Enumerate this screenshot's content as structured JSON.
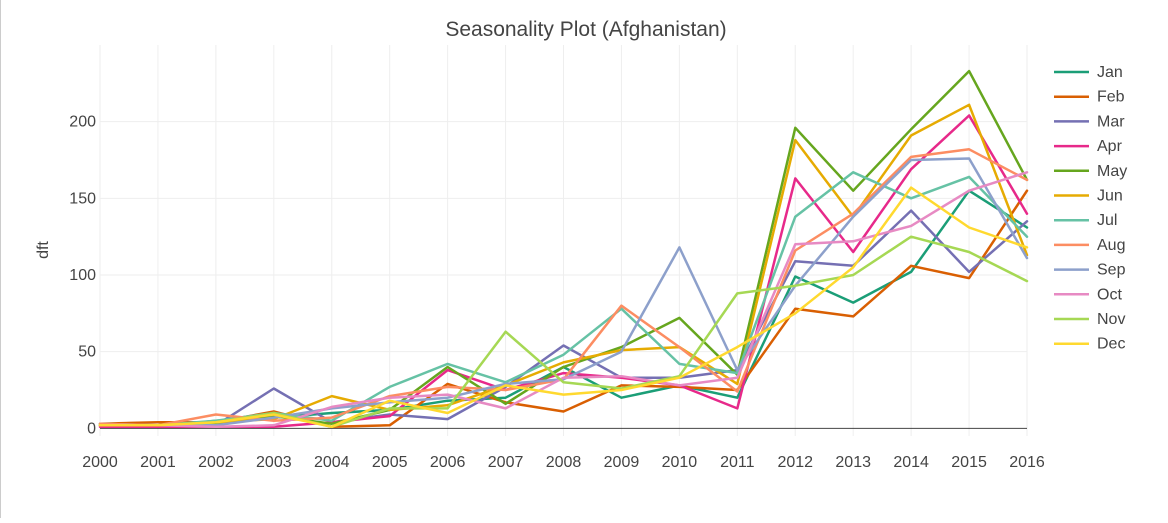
{
  "chart_data": {
    "type": "line",
    "title": "Seasonality Plot (Afghanistan)",
    "xlabel": "",
    "ylabel": "dft",
    "x": [
      2000,
      2001,
      2002,
      2003,
      2004,
      2005,
      2006,
      2007,
      2008,
      2009,
      2010,
      2011,
      2012,
      2013,
      2014,
      2015,
      2016
    ],
    "xlim": [
      2000,
      2016
    ],
    "ylim": [
      -5,
      250
    ],
    "yticks": [
      0,
      50,
      100,
      150,
      200
    ],
    "grid": true,
    "legend_position": "right",
    "series": [
      {
        "name": "Jan",
        "color": "#1b9e77",
        "values": [
          2,
          1,
          5,
          7,
          10,
          12,
          18,
          20,
          40,
          20,
          28,
          20,
          99,
          82,
          102,
          155,
          131
        ]
      },
      {
        "name": "Feb",
        "color": "#d95f02",
        "values": [
          3,
          4,
          4,
          11,
          1,
          2,
          29,
          17,
          11,
          28,
          27,
          25,
          78,
          73,
          106,
          98,
          155
        ]
      },
      {
        "name": "Mar",
        "color": "#7570b3",
        "values": [
          2,
          2,
          2,
          26,
          4,
          9,
          6,
          27,
          54,
          33,
          33,
          38,
          109,
          106,
          142,
          102,
          135
        ]
      },
      {
        "name": "Apr",
        "color": "#e7298a",
        "values": [
          1,
          1,
          1,
          1,
          4,
          8,
          38,
          25,
          36,
          33,
          28,
          13,
          163,
          115,
          169,
          204,
          140
        ]
      },
      {
        "name": "May",
        "color": "#66a61e",
        "values": [
          2,
          2,
          3,
          8,
          3,
          12,
          40,
          16,
          40,
          53,
          72,
          35,
          196,
          155,
          195,
          233,
          162
        ]
      },
      {
        "name": "Jun",
        "color": "#e6ab02",
        "values": [
          2,
          2,
          4,
          6,
          21,
          12,
          15,
          28,
          43,
          51,
          53,
          29,
          188,
          138,
          191,
          211,
          113
        ]
      },
      {
        "name": "Jul",
        "color": "#66c2a5",
        "values": [
          3,
          2,
          5,
          10,
          5,
          27,
          42,
          30,
          48,
          78,
          42,
          36,
          138,
          167,
          150,
          164,
          125
        ]
      },
      {
        "name": "Aug",
        "color": "#fc8d62",
        "values": [
          3,
          2,
          9,
          5,
          7,
          21,
          27,
          25,
          32,
          80,
          53,
          24,
          116,
          140,
          177,
          182,
          162
        ]
      },
      {
        "name": "Sep",
        "color": "#8da0cb",
        "values": [
          2,
          2,
          2,
          7,
          13,
          17,
          20,
          29,
          32,
          50,
          118,
          38,
          93,
          138,
          175,
          176,
          111
        ]
      },
      {
        "name": "Oct",
        "color": "#e78ac3",
        "values": [
          2,
          2,
          1,
          2,
          14,
          20,
          22,
          13,
          33,
          34,
          28,
          33,
          120,
          122,
          132,
          155,
          167
        ]
      },
      {
        "name": "Nov",
        "color": "#a6d854",
        "values": [
          2,
          2,
          4,
          10,
          1,
          13,
          13,
          63,
          30,
          26,
          34,
          88,
          93,
          100,
          125,
          115,
          96
        ]
      },
      {
        "name": "Dec",
        "color": "#ffd92f",
        "values": [
          2,
          2,
          4,
          9,
          1,
          18,
          10,
          28,
          22,
          25,
          33,
          53,
          75,
          105,
          157,
          131,
          118
        ]
      }
    ]
  }
}
